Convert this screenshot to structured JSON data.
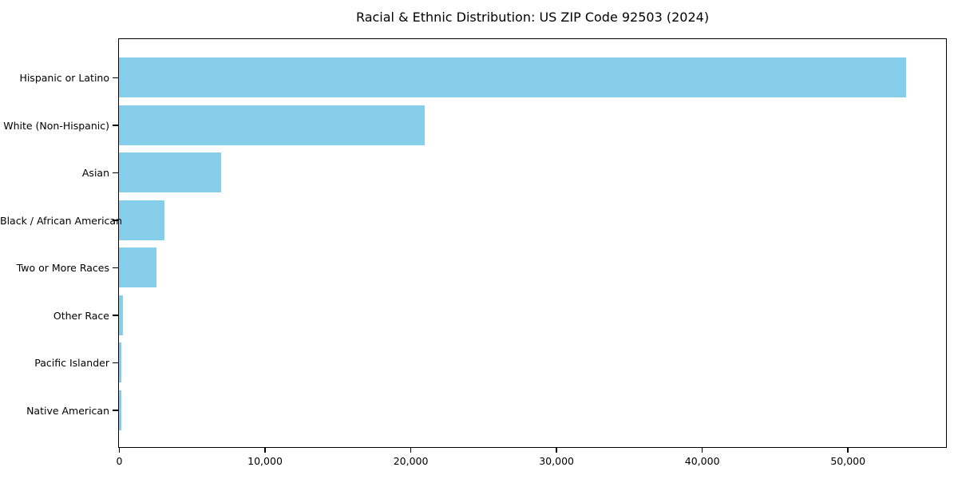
{
  "figure": {
    "background_color": "#ffffff",
    "spine_color": "#000000",
    "text_color": "#000000"
  },
  "chart_data": {
    "type": "bar",
    "orientation": "horizontal",
    "title": "Racial & Ethnic Distribution: US ZIP Code 92503 (2024)",
    "categories": [
      "Hispanic or Latino",
      "White (Non-Hispanic)",
      "Asian",
      "Black / African American",
      "Two or More Races",
      "Other Race",
      "Pacific Islander",
      "Native American"
    ],
    "values": [
      54000,
      21000,
      7000,
      3100,
      2600,
      260,
      160,
      140
    ],
    "xlabel": "",
    "ylabel": "",
    "xlim": [
      0,
      56700
    ],
    "xticks": [
      0,
      10000,
      20000,
      30000,
      40000,
      50000
    ],
    "xtick_labels": [
      "0",
      "10,000",
      "20,000",
      "30,000",
      "40,000",
      "50,000"
    ],
    "bar_color": "#87ceeb",
    "grid": false,
    "legend_position": "none"
  }
}
